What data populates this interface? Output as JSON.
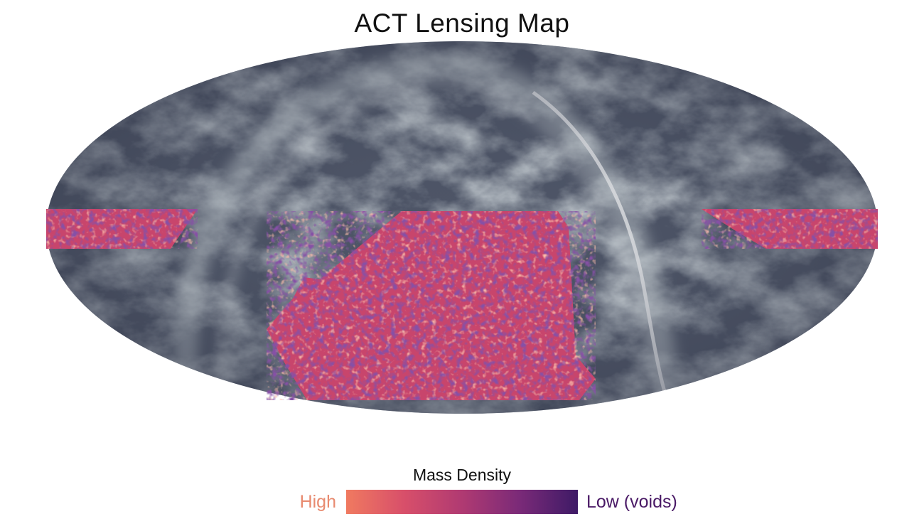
{
  "title": "ACT Lensing Map",
  "legend": {
    "title": "Mass Density",
    "high_label": "High",
    "low_label": "Low (voids)",
    "colors": [
      "#f07a60",
      "#d84f6a",
      "#b03a72",
      "#7a2a78",
      "#3e1a66"
    ],
    "high_color": "#e88a6f",
    "low_color": "#4a1a66"
  },
  "map": {
    "projection": "Mollweide (all-sky)",
    "background_colors": [
      "#3f4458",
      "#6a7384",
      "#c9d6d8",
      "#f2f7f7"
    ],
    "act_region_colors": [
      "#f07a60",
      "#c8456c",
      "#6f2a74"
    ]
  }
}
